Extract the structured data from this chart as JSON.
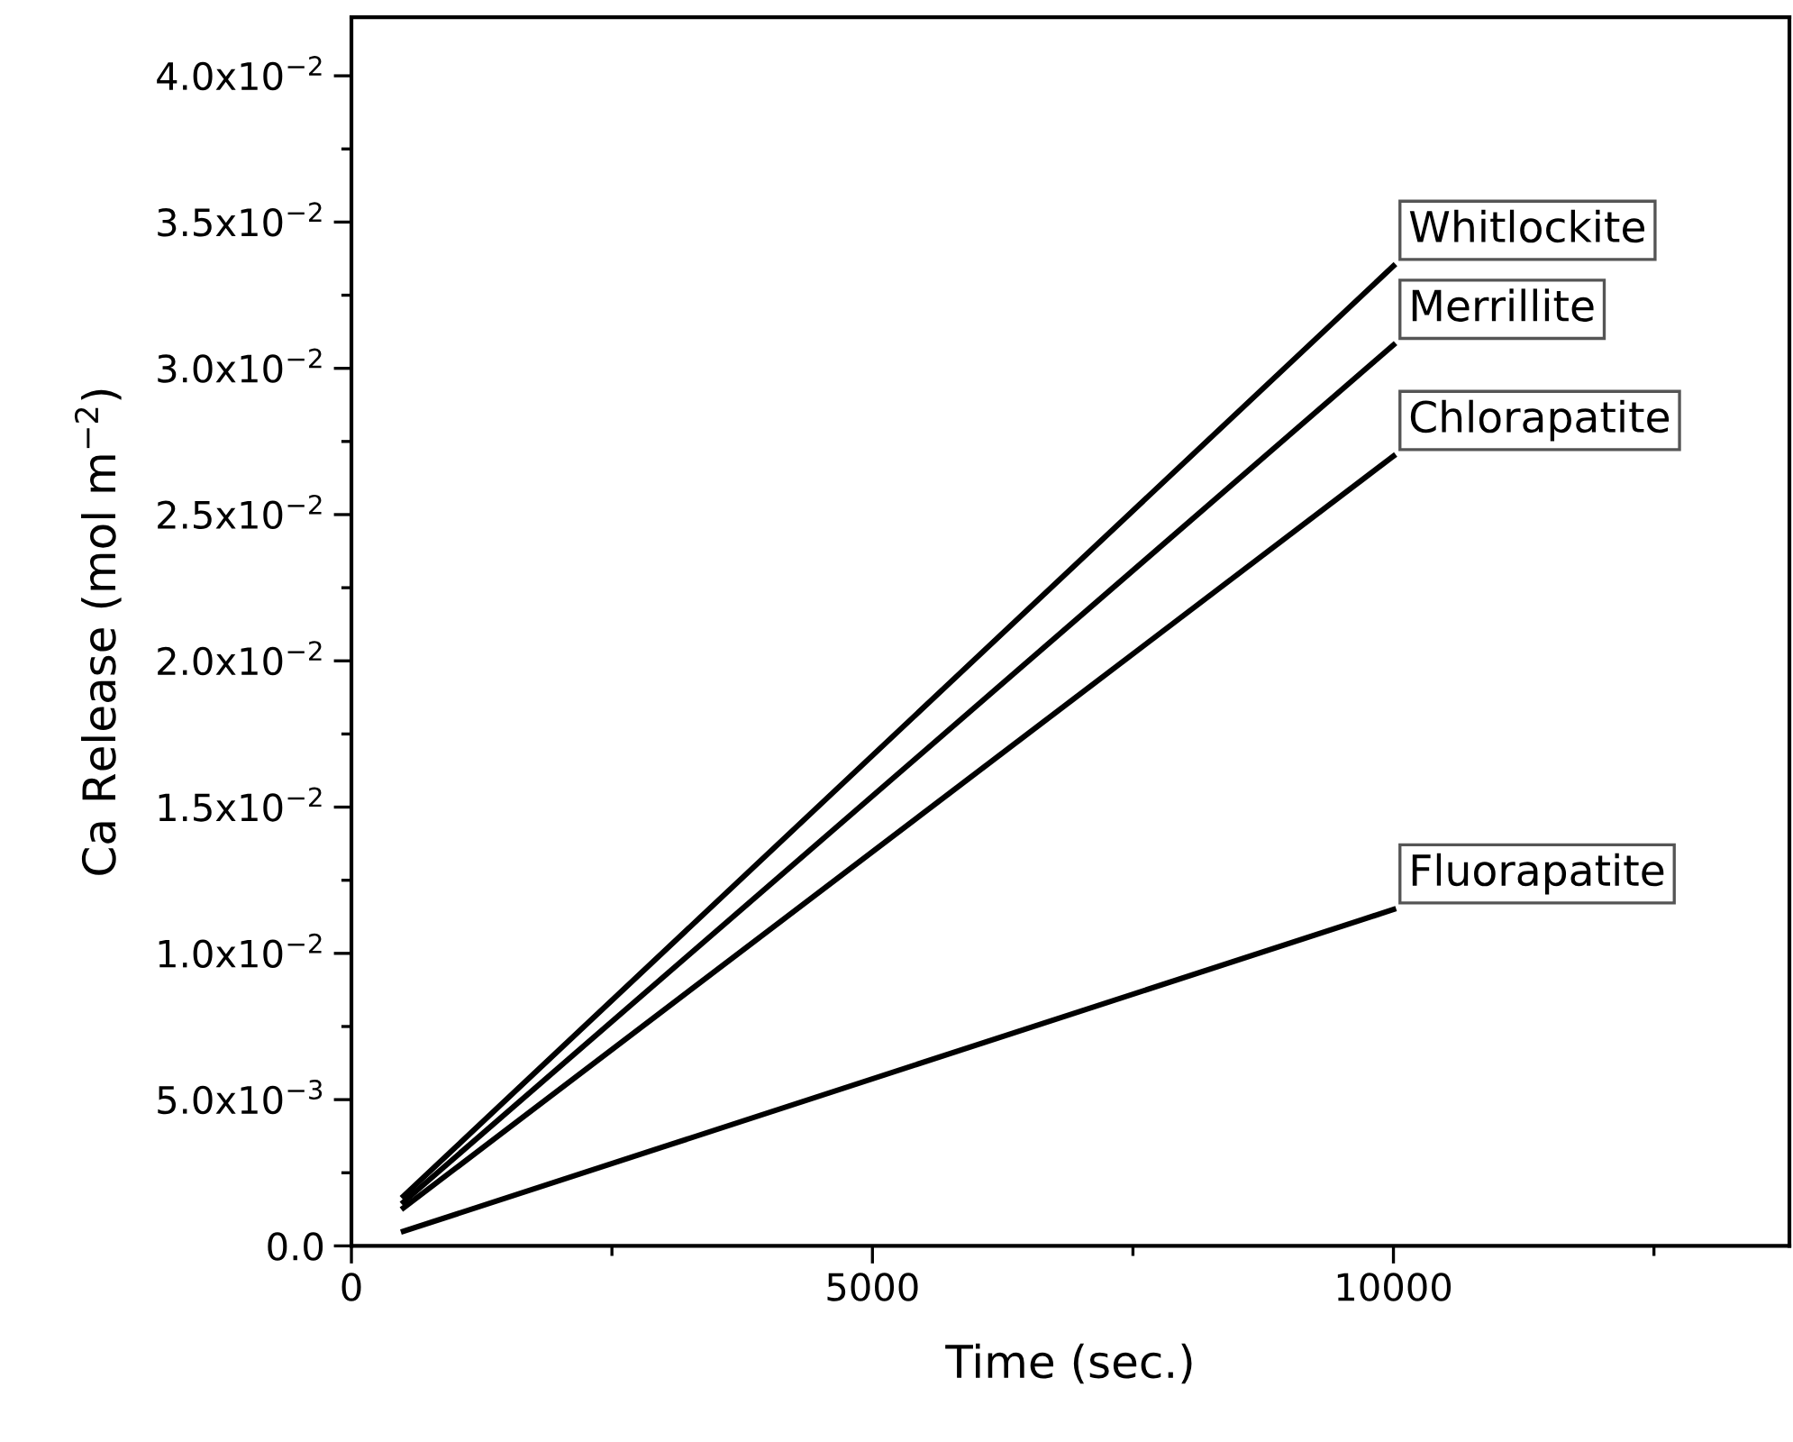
{
  "chart_data": {
    "type": "line",
    "xlabel": "Time (sec.)",
    "ylabel": "Ca Release (mol m$^{−2}$)",
    "x": [
      500,
      10000
    ],
    "series": [
      {
        "name": "Whitlockite",
        "color": "#000000",
        "values": [
          0.0017,
          0.0335
        ]
      },
      {
        "name": "Merrillite",
        "color": "#000000",
        "values": [
          0.0015,
          0.0308
        ]
      },
      {
        "name": "Chlorapatite",
        "color": "#000000",
        "values": [
          0.0013,
          0.027
        ]
      },
      {
        "name": "Fluorapatite",
        "color": "#000000",
        "values": [
          0.0005,
          0.0115
        ]
      }
    ],
    "xlim": [
      0,
      13800
    ],
    "xticks": [
      0,
      5000,
      10000
    ],
    "ylim": [
      0,
      0.042
    ],
    "yticks": [
      {
        "value": 0,
        "label": "0.0"
      },
      {
        "value": 0.005,
        "label": "5.0x10$^{−3}$"
      },
      {
        "value": 0.01,
        "label": "1.0x10$^{−2}$"
      },
      {
        "value": 0.015,
        "label": "1.5x10$^{−2}$"
      },
      {
        "value": 0.02,
        "label": "2.0x10$^{−2}$"
      },
      {
        "value": 0.025,
        "label": "2.5x10$^{−2}$"
      },
      {
        "value": 0.03,
        "label": "3.0x10$^{−2}$"
      },
      {
        "value": 0.035,
        "label": "3.5x10$^{−2}$"
      },
      {
        "value": 0.04,
        "label": "4.0x10$^{−2}$"
      }
    ],
    "grid": false,
    "legend": false,
    "marker": "none",
    "line_style": "solid"
  }
}
